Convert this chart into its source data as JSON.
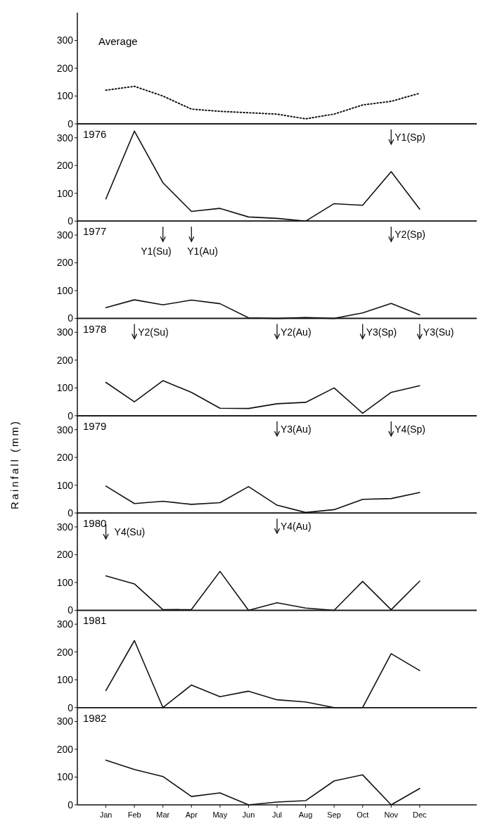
{
  "chart_data": [
    {
      "type": "line",
      "title": "Average",
      "categories": [
        null,
        null,
        null,
        null,
        null,
        null,
        null,
        null,
        null,
        null,
        null,
        null
      ],
      "series": [
        {
          "color": "#111111",
          "values": [
            121,
            135,
            100,
            53,
            45,
            40,
            35,
            18,
            35,
            68,
            81,
            110
          ]
        }
      ],
      "line_style": "dotted",
      "ylim": [
        0,
        400
      ],
      "yticks": [
        0,
        100,
        200,
        300
      ],
      "tick_labels": "y",
      "grid": false,
      "marker": "none"
    },
    {
      "type": "line",
      "title": "1976",
      "categories": [
        null,
        null,
        null,
        null,
        null,
        null,
        null,
        null,
        null,
        null,
        null,
        null
      ],
      "series": [
        {
          "color": "#111111",
          "values": [
            80,
            324,
            138,
            35,
            46,
            15,
            10,
            0,
            63,
            57,
            178,
            43
          ]
        }
      ],
      "line_style": "solid",
      "ylim": [
        0,
        350
      ],
      "yticks": [
        0,
        100,
        200,
        300
      ],
      "tick_labels": "y",
      "grid": false,
      "marker": "none",
      "annotations": [
        "Y1(Sp)"
      ]
    },
    {
      "type": "line",
      "title": "1977",
      "categories": [
        null,
        null,
        null,
        null,
        null,
        null,
        null,
        null,
        null,
        null,
        null,
        null
      ],
      "series": [
        {
          "color": "#111111",
          "values": [
            39,
            67,
            49,
            66,
            53,
            2,
            0,
            3,
            0,
            20,
            54,
            13
          ]
        }
      ],
      "line_style": "solid",
      "ylim": [
        0,
        350
      ],
      "yticks": [
        0,
        100,
        200,
        300
      ],
      "tick_labels": "y",
      "grid": false,
      "marker": "none",
      "annotations": [
        "Y1(Su)",
        "Y1(Au)",
        "Y2(Sp)"
      ]
    },
    {
      "type": "line",
      "title": "1978",
      "categories": [
        null,
        null,
        null,
        null,
        null,
        null,
        null,
        null,
        null,
        null,
        null,
        null
      ],
      "series": [
        {
          "color": "#111111",
          "values": [
            120,
            50,
            126,
            84,
            27,
            26,
            43,
            48,
            100,
            9,
            84,
            108
          ]
        }
      ],
      "line_style": "solid",
      "ylim": [
        0,
        350
      ],
      "yticks": [
        0,
        100,
        200,
        300
      ],
      "tick_labels": "y",
      "grid": false,
      "marker": "none",
      "annotations": [
        "Y2(Su)",
        "Y2(Au)",
        "Y3(Sp)",
        "Y3(Su)"
      ]
    },
    {
      "type": "line",
      "title": "1979",
      "ylabel": "Rainfall (mm)",
      "categories": [
        null,
        null,
        null,
        null,
        null,
        null,
        null,
        null,
        null,
        null,
        null,
        null
      ],
      "series": [
        {
          "color": "#111111",
          "values": [
            97,
            34,
            42,
            31,
            37,
            95,
            28,
            2,
            12,
            49,
            52,
            74
          ]
        }
      ],
      "line_style": "solid",
      "ylim": [
        0,
        350
      ],
      "yticks": [
        0,
        100,
        200,
        300
      ],
      "tick_labels": "y",
      "grid": false,
      "marker": "none",
      "annotations": [
        "Y3(Au)",
        "Y4(Sp)"
      ]
    },
    {
      "type": "line",
      "title": "1980",
      "categories": [
        null,
        null,
        null,
        null,
        null,
        null,
        null,
        null,
        null,
        null,
        null,
        null
      ],
      "series": [
        {
          "color": "#111111",
          "values": [
            124,
            95,
            2,
            3,
            140,
            0,
            27,
            8,
            0,
            104,
            2,
            105
          ]
        }
      ],
      "line_style": "solid",
      "ylim": [
        0,
        350
      ],
      "yticks": [
        0,
        100,
        200,
        300
      ],
      "tick_labels": "y",
      "grid": false,
      "marker": "none",
      "annotations": [
        "Y4(Su)",
        "Y4(Au)"
      ]
    },
    {
      "type": "line",
      "title": "1981",
      "categories": [
        null,
        null,
        null,
        null,
        null,
        null,
        null,
        null,
        null,
        null,
        null,
        null
      ],
      "series": [
        {
          "color": "#111111",
          "values": [
            61,
            241,
            0,
            81,
            39,
            59,
            28,
            20,
            0,
            0,
            194,
            133
          ]
        }
      ],
      "line_style": "solid",
      "ylim": [
        0,
        350
      ],
      "yticks": [
        0,
        100,
        200,
        300
      ],
      "tick_labels": "y",
      "grid": false,
      "marker": "none"
    },
    {
      "type": "line",
      "title": "1982",
      "categories": [
        "Jan",
        "Feb",
        "Mar",
        "Apr",
        "May",
        "Jun",
        "Jul",
        "Aug",
        "Sep",
        "Oct",
        "Nov",
        "Dec"
      ],
      "series": [
        {
          "color": "#111111",
          "values": [
            161,
            127,
            102,
            30,
            43,
            0,
            10,
            15,
            86,
            108,
            0,
            59
          ]
        }
      ],
      "line_style": "solid",
      "ylim": [
        0,
        350
      ],
      "yticks": [
        0,
        100,
        200,
        300
      ],
      "grid": false,
      "marker": "none"
    }
  ]
}
